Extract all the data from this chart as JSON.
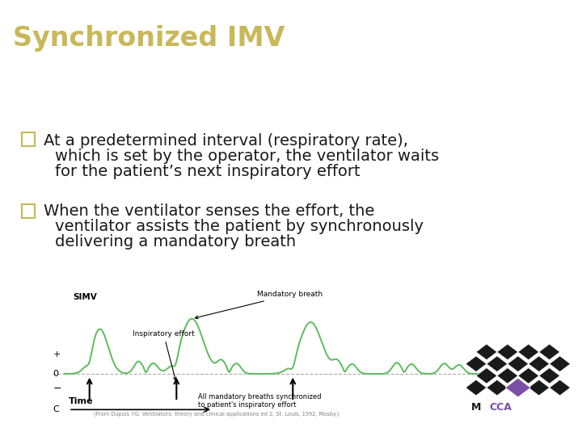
{
  "title": "Synchronized IMV",
  "title_color": "#C8B85A",
  "title_bg_color": "#0D3464",
  "title_fontsize": 24,
  "body_bg_color": "#FFFFFF",
  "bullet_color": "#C8B85A",
  "text_color": "#1A1A1A",
  "bullet1_line1": "At a predetermined interval (respiratory rate),",
  "bullet1_line2": "which is set by the operator, the ventilator waits",
  "bullet1_line3": "for the patient’s next inspiratory effort",
  "bullet2_line1": "When the ventilator senses the effort, the",
  "bullet2_line2": "ventilator assists the patient by synchronously",
  "bullet2_line3": "delivering a mandatory breath",
  "citation": "(From Dupuis YG: Ventilators: theory and clinical applications ed 2, St. Louis, 1992, Mosby.)",
  "wave_color": "#5DBB5D",
  "diagram_bg": "#FFFFFF",
  "axis_color": "#888888",
  "mcca_purple": "#7B4FA6",
  "mcca_dark": "#1A1A1A"
}
